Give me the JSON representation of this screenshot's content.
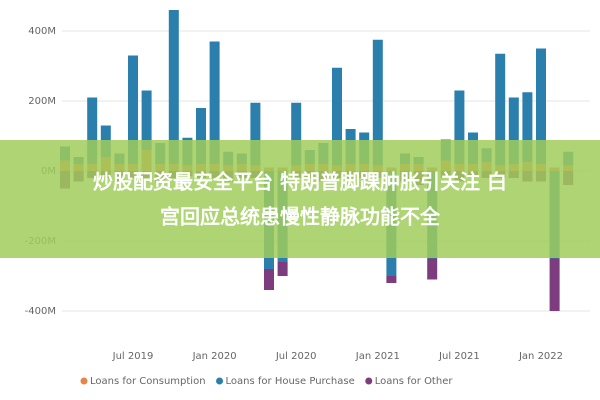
{
  "chart_data": {
    "type": "bar",
    "categories": [
      null,
      null,
      null,
      null,
      null,
      "Jul 2019",
      null,
      null,
      null,
      null,
      null,
      "Jan 2020",
      null,
      null,
      null,
      null,
      null,
      "Jul 2020",
      null,
      null,
      null,
      null,
      null,
      "Jan 2021",
      null,
      null,
      null,
      null,
      null,
      "Jul 2021",
      null,
      null,
      null,
      null,
      null,
      "Jan 2022",
      null,
      null
    ],
    "series": [
      {
        "name": "Loans for Consumption",
        "color": "#e8834a",
        "values": [
          30,
          20,
          20,
          40,
          20,
          20,
          60,
          20,
          20,
          15,
          20,
          20,
          15,
          20,
          15,
          10,
          10,
          15,
          20,
          20,
          15,
          20,
          20,
          15,
          10,
          20,
          20,
          10,
          30,
          20,
          20,
          25,
          15,
          20,
          25,
          20,
          10,
          15
        ]
      },
      {
        "name": "Loans for House Purchase",
        "color": "#2b7fad",
        "values": [
          40,
          20,
          190,
          90,
          30,
          310,
          170,
          60,
          440,
          80,
          160,
          350,
          40,
          30,
          180,
          -280,
          -260,
          180,
          40,
          60,
          280,
          100,
          90,
          360,
          -300,
          30,
          20,
          -250,
          60,
          210,
          90,
          40,
          320,
          190,
          200,
          330,
          -250,
          40
        ]
      },
      {
        "name": "Loans for Other",
        "color": "#7d3c7e",
        "values": [
          -50,
          -30,
          -20,
          -20,
          -30,
          -20,
          -20,
          -30,
          -20,
          -15,
          -20,
          -20,
          -30,
          -20,
          -20,
          -60,
          -40,
          -20,
          -20,
          -30,
          -20,
          -20,
          -20,
          -20,
          -20,
          -30,
          -40,
          -60,
          -20,
          -30,
          -20,
          -20,
          -20,
          -20,
          -30,
          -30,
          -150,
          -40
        ]
      }
    ],
    "ylim": [
      -470,
      470
    ],
    "yticks": [
      {
        "value": 400,
        "label": "400M"
      },
      {
        "value": 200,
        "label": "200M"
      },
      {
        "value": 0,
        "label": "0M"
      },
      {
        "value": -200,
        "label": "-200M"
      },
      {
        "value": -400,
        "label": "-400M"
      }
    ],
    "grid": true
  },
  "overlay": {
    "lines": [
      "炒股配资最安全平台 特朗普脚踝肿胀引关注 白",
      "宫回应总统患慢性静脉功能不全"
    ]
  }
}
